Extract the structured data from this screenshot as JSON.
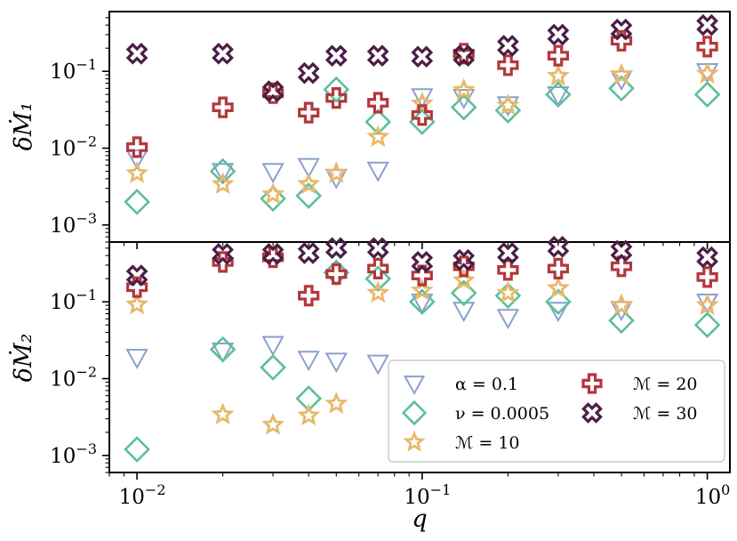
{
  "chart_data": {
    "type": "scatter",
    "x_scale": "log",
    "y_scale": "log",
    "shared_x": true,
    "xlim": [
      0.008,
      1.2
    ],
    "xlabel": "q",
    "x_ticks": [
      {
        "value": 0.01,
        "label": "10−2"
      },
      {
        "value": 0.1,
        "label": "10−1"
      },
      {
        "value": 1,
        "label": "100"
      }
    ],
    "colors": {
      "alpha": "#8b9fcf",
      "nu": "#5dbf9c",
      "m10": "#e8b96b",
      "m20": "#b3373d",
      "m30": "#4a1f45"
    },
    "panels": [
      {
        "id": "panel1",
        "ylabel": "δṀ₁",
        "ylim": [
          0.0006,
          0.6
        ],
        "y_ticks": [
          {
            "value": 0.001,
            "label": "10−3"
          },
          {
            "value": 0.01,
            "label": "10−2"
          },
          {
            "value": 0.1,
            "label": "10−1"
          }
        ],
        "series": [
          {
            "key": "alpha",
            "name": "α = 0.1",
            "marker": "triangle-down",
            "points": [
              [
                0.01,
                0.0075
              ],
              [
                0.02,
                0.005
              ],
              [
                0.03,
                0.005
              ],
              [
                0.04,
                0.0058
              ],
              [
                0.05,
                0.0042
              ],
              [
                0.07,
                0.0052
              ],
              [
                0.1,
                0.047
              ],
              [
                0.14,
                0.046
              ],
              [
                0.2,
                0.037
              ],
              [
                0.3,
                0.05
              ],
              [
                0.5,
                0.08
              ],
              [
                1,
                0.1
              ]
            ]
          },
          {
            "key": "nu",
            "name": "ν = 0.0005",
            "marker": "diamond",
            "points": [
              [
                0.01,
                0.002
              ],
              [
                0.02,
                0.005
              ],
              [
                0.03,
                0.0022
              ],
              [
                0.04,
                0.0024
              ],
              [
                0.05,
                0.058
              ],
              [
                0.07,
                0.022
              ],
              [
                0.1,
                0.022
              ],
              [
                0.14,
                0.034
              ],
              [
                0.2,
                0.031
              ],
              [
                0.3,
                0.05
              ],
              [
                0.5,
                0.06
              ],
              [
                1,
                0.05
              ]
            ]
          },
          {
            "key": "m10",
            "name": "ℳ = 10",
            "marker": "star",
            "points": [
              [
                0.01,
                0.0047
              ],
              [
                0.02,
                0.0034
              ],
              [
                0.03,
                0.0025
              ],
              [
                0.04,
                0.0034
              ],
              [
                0.05,
                0.0047
              ],
              [
                0.07,
                0.014
              ],
              [
                0.1,
                0.038
              ],
              [
                0.14,
                0.057
              ],
              [
                0.2,
                0.036
              ],
              [
                0.3,
                0.087
              ],
              [
                0.5,
                0.09
              ],
              [
                1,
                0.093
              ]
            ]
          },
          {
            "key": "m20",
            "name": "ℳ = 20",
            "marker": "plus",
            "points": [
              [
                0.01,
                0.0103
              ],
              [
                0.02,
                0.034
              ],
              [
                0.03,
                0.052
              ],
              [
                0.04,
                0.029
              ],
              [
                0.05,
                0.045
              ],
              [
                0.07,
                0.039
              ],
              [
                0.1,
                0.027
              ],
              [
                0.14,
                0.17
              ],
              [
                0.2,
                0.12
              ],
              [
                0.3,
                0.16
              ],
              [
                0.5,
                0.25
              ],
              [
                1,
                0.21
              ]
            ]
          },
          {
            "key": "m30",
            "name": "ℳ = 30",
            "marker": "x",
            "points": [
              [
                0.01,
                0.17
              ],
              [
                0.02,
                0.17
              ],
              [
                0.03,
                0.055
              ],
              [
                0.04,
                0.095
              ],
              [
                0.05,
                0.16
              ],
              [
                0.07,
                0.16
              ],
              [
                0.1,
                0.155
              ],
              [
                0.14,
                0.16
              ],
              [
                0.2,
                0.215
              ],
              [
                0.3,
                0.3
              ],
              [
                0.5,
                0.35
              ],
              [
                1,
                0.4
              ]
            ]
          }
        ]
      },
      {
        "id": "panel2",
        "ylabel": "δṀ₂",
        "ylim": [
          0.0006,
          0.6
        ],
        "y_ticks": [
          {
            "value": 0.001,
            "label": "10−3"
          },
          {
            "value": 0.01,
            "label": "10−2"
          },
          {
            "value": 0.1,
            "label": "10−1"
          }
        ],
        "series": [
          {
            "key": "alpha",
            "name": "α = 0.1",
            "marker": "triangle-down",
            "points": [
              [
                0.01,
                0.019
              ],
              [
                0.02,
                0.023
              ],
              [
                0.03,
                0.028
              ],
              [
                0.04,
                0.018
              ],
              [
                0.05,
                0.017
              ],
              [
                0.07,
                0.016
              ],
              [
                0.1,
                0.1
              ],
              [
                0.14,
                0.078
              ],
              [
                0.2,
                0.063
              ],
              [
                0.3,
                0.078
              ],
              [
                0.5,
                0.08
              ],
              [
                1,
                0.1
              ]
            ]
          },
          {
            "key": "nu",
            "name": "ν = 0.0005",
            "marker": "diamond",
            "points": [
              [
                0.01,
                0.0012
              ],
              [
                0.02,
                0.024
              ],
              [
                0.03,
                0.014
              ],
              [
                0.04,
                0.0055
              ],
              [
                0.05,
                0.24
              ],
              [
                0.07,
                0.2
              ],
              [
                0.1,
                0.1
              ],
              [
                0.14,
                0.13
              ],
              [
                0.2,
                0.12
              ],
              [
                0.3,
                0.1
              ],
              [
                0.5,
                0.057
              ],
              [
                1,
                0.05
              ]
            ]
          },
          {
            "key": "m10",
            "name": "ℳ = 10",
            "marker": "star",
            "points": [
              [
                0.01,
                0.092
              ],
              [
                0.02,
                0.0034
              ],
              [
                0.03,
                0.0025
              ],
              [
                0.04,
                0.0033
              ],
              [
                0.05,
                0.0047
              ],
              [
                0.07,
                0.13
              ],
              [
                0.1,
                0.14
              ],
              [
                0.14,
                0.19
              ],
              [
                0.2,
                0.13
              ],
              [
                0.3,
                0.15
              ],
              [
                0.5,
                0.09
              ],
              [
                1,
                0.09
              ]
            ]
          },
          {
            "key": "m20",
            "name": "ℳ = 20",
            "marker": "plus",
            "points": [
              [
                0.01,
                0.155
              ],
              [
                0.02,
                0.33
              ],
              [
                0.03,
                0.38
              ],
              [
                0.04,
                0.12
              ],
              [
                0.05,
                0.23
              ],
              [
                0.07,
                0.27
              ],
              [
                0.1,
                0.22
              ],
              [
                0.14,
                0.29
              ],
              [
                0.2,
                0.26
              ],
              [
                0.3,
                0.27
              ],
              [
                0.5,
                0.29
              ],
              [
                1,
                0.21
              ]
            ]
          },
          {
            "key": "m30",
            "name": "ℳ = 30",
            "marker": "x",
            "points": [
              [
                0.01,
                0.22
              ],
              [
                0.02,
                0.42
              ],
              [
                0.03,
                0.42
              ],
              [
                0.04,
                0.43
              ],
              [
                0.05,
                0.5
              ],
              [
                0.07,
                0.5
              ],
              [
                0.1,
                0.33
              ],
              [
                0.14,
                0.35
              ],
              [
                0.2,
                0.43
              ],
              [
                0.3,
                0.52
              ],
              [
                0.5,
                0.46
              ],
              [
                1,
                0.38
              ]
            ]
          }
        ]
      }
    ],
    "legend": {
      "panel": "panel2",
      "placement": "lower-right",
      "columns": 2,
      "entries": [
        {
          "key": "alpha",
          "label": "α = 0.1",
          "marker": "triangle-down"
        },
        {
          "key": "m20",
          "label": "ℳ = 20",
          "marker": "plus"
        },
        {
          "key": "nu",
          "label": "ν = 0.0005",
          "marker": "diamond"
        },
        {
          "key": "m30",
          "label": "ℳ = 30",
          "marker": "x"
        },
        {
          "key": "m10",
          "label": "ℳ = 10",
          "marker": "star"
        }
      ]
    }
  }
}
